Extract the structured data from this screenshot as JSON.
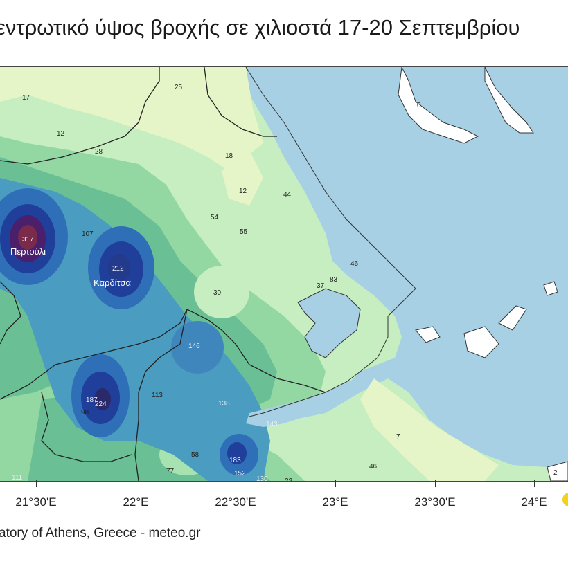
{
  "title": "εντρωτικό ύψος βροχής σε χιλιοστά 17-20 Σεπτεμβρίου",
  "credit": "atory of Athens, Greece - meteo.gr",
  "colors": {
    "sea": "#a7d0e4",
    "land_white": "#ffffff",
    "rain_low": "#e6f5c8",
    "rain_light": "#c6eec0",
    "rain_mid": "#93d8a2",
    "rain_mid2": "#6bbf94",
    "rain_high": "#4a9cc0",
    "rain_higher": "#2f6fb8",
    "rain_very_high": "#1f3f9a",
    "rain_extreme": "#4a1f6b",
    "rain_peak": "#7a2a4a"
  },
  "axis": {
    "ticks": [
      {
        "label": "21°30'E"
      },
      {
        "label": "22°E"
      },
      {
        "label": "22°30'E"
      },
      {
        "label": "23°E"
      },
      {
        "label": "23°30'E"
      },
      {
        "label": "24°E"
      }
    ]
  },
  "places": [
    {
      "name": "Περτούλι"
    },
    {
      "name": "Καρδίτσα"
    }
  ],
  "stations": [
    {
      "value": "17"
    },
    {
      "value": "25"
    },
    {
      "value": "12"
    },
    {
      "value": "28"
    },
    {
      "value": "18"
    },
    {
      "value": "12"
    },
    {
      "value": "44"
    },
    {
      "value": "54"
    },
    {
      "value": "55"
    },
    {
      "value": "107"
    },
    {
      "value": "317"
    },
    {
      "value": "212"
    },
    {
      "value": "30"
    },
    {
      "value": "46"
    },
    {
      "value": "37"
    },
    {
      "value": "83"
    },
    {
      "value": "146"
    },
    {
      "value": "187"
    },
    {
      "value": "224"
    },
    {
      "value": "113"
    },
    {
      "value": "98"
    },
    {
      "value": "138"
    },
    {
      "value": "143"
    },
    {
      "value": "58"
    },
    {
      "value": "77"
    },
    {
      "value": "183"
    },
    {
      "value": "152"
    },
    {
      "value": "130"
    },
    {
      "value": "22"
    },
    {
      "value": "111"
    },
    {
      "value": "7"
    },
    {
      "value": "46"
    },
    {
      "value": "2"
    },
    {
      "value": "0"
    }
  ]
}
